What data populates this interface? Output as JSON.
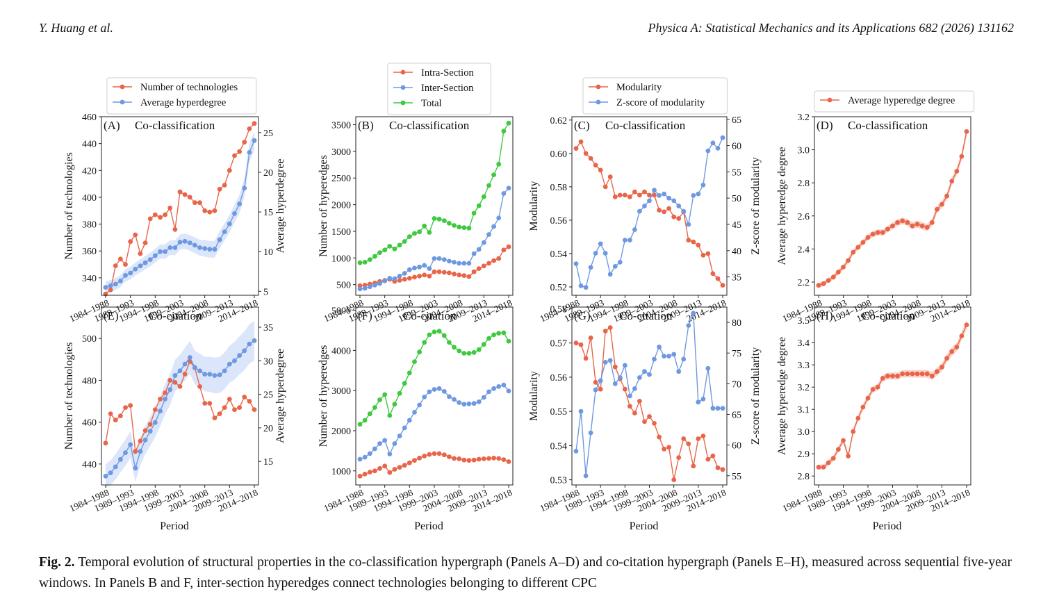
{
  "header": {
    "authors": "Y. Huang et al.",
    "journal": "Physica A: Statistical Mechanics and its Applications 682 (2026) 131162"
  },
  "caption": {
    "label": "Fig. 2.",
    "text": "Temporal evolution of structural properties in the co-classification hypergraph (Panels A–D) and co-citation hypergraph (Panels E–H), measured across sequential five-year windows. In Panels B and F, inter-section hyperedges connect technologies belonging to different CPC"
  },
  "colors": {
    "red": "#e8654a",
    "blue": "#6e98e0",
    "green": "#3ec93e",
    "blue_band": "#dbe6fa",
    "red_band": "#f8d5cc"
  },
  "x_axis": {
    "label": "Period",
    "ticks": [
      "1984–1988",
      "1989–1993",
      "1994–1998",
      "1999–2003",
      "2004–2008",
      "2009–2013",
      "2014–2018"
    ]
  },
  "chart_data": [
    {
      "id": "A",
      "panel": "(A)",
      "title": "Co-classification",
      "type": "line",
      "ylabel": "Number of technologies",
      "ylim": [
        327,
        460
      ],
      "yticks": [
        340,
        360,
        380,
        400,
        420,
        440,
        460
      ],
      "y2label": "Average hyperdegree",
      "y2lim": [
        4.5,
        27
      ],
      "y2ticks": [
        5,
        10,
        15,
        20,
        25
      ],
      "legend": [
        "Number of technologies",
        "Average hyperdegree"
      ],
      "series": [
        {
          "name": "Number of technologies",
          "axis": "left",
          "color": "red",
          "values": [
            328,
            331,
            349,
            354,
            350,
            367,
            372,
            358,
            366,
            384,
            387,
            385,
            387,
            392,
            376,
            404,
            402,
            400,
            396,
            396,
            390,
            389,
            390,
            406,
            409,
            420,
            431,
            434,
            441,
            451,
            455
          ]
        },
        {
          "name": "Average hyperdegree",
          "axis": "right",
          "color": "blue",
          "band": 1.2,
          "values": [
            5.5,
            5.7,
            5.9,
            6.3,
            7.0,
            7.3,
            7.8,
            8.2,
            8.6,
            9.0,
            9.5,
            10.0,
            10.0,
            10.5,
            10.5,
            11.2,
            11.3,
            11.1,
            10.8,
            10.5,
            10.4,
            10.3,
            10.3,
            11.5,
            12.5,
            13.5,
            14.8,
            16.0,
            18.0,
            22.5,
            24.0
          ]
        }
      ]
    },
    {
      "id": "B",
      "panel": "(B)",
      "title": "Co-classification",
      "type": "line",
      "ylabel": "Number of hyperedges",
      "ylim": [
        300,
        3650
      ],
      "yticks": [
        500,
        1000,
        1500,
        2000,
        2500,
        3000,
        3500
      ],
      "legend": [
        "Intra-Section",
        "Inter-Section",
        "Total"
      ],
      "series": [
        {
          "name": "Intra-Section",
          "axis": "left",
          "color": "red",
          "values": [
            480,
            490,
            510,
            530,
            560,
            580,
            600,
            560,
            580,
            600,
            620,
            640,
            660,
            680,
            660,
            740,
            740,
            730,
            720,
            700,
            680,
            670,
            650,
            740,
            800,
            850,
            900,
            950,
            990,
            1150,
            1210
          ]
        },
        {
          "name": "Inter-Section",
          "axis": "left",
          "color": "blue",
          "values": [
            420,
            430,
            460,
            490,
            520,
            570,
            620,
            610,
            660,
            710,
            780,
            810,
            830,
            860,
            800,
            990,
            990,
            970,
            940,
            920,
            900,
            900,
            900,
            1080,
            1160,
            1290,
            1440,
            1590,
            1750,
            2210,
            2310
          ]
        },
        {
          "name": "Total",
          "axis": "left",
          "color": "green",
          "values": [
            910,
            920,
            970,
            1030,
            1100,
            1150,
            1220,
            1170,
            1240,
            1310,
            1400,
            1460,
            1490,
            1600,
            1480,
            1740,
            1730,
            1700,
            1650,
            1610,
            1580,
            1570,
            1560,
            1840,
            1980,
            2150,
            2360,
            2560,
            2760,
            3380,
            3530
          ]
        }
      ]
    },
    {
      "id": "C",
      "panel": "(C)",
      "title": "Co-classification",
      "type": "line",
      "ylabel": "Modularity",
      "ylim": [
        0.515,
        0.622
      ],
      "yticks": [
        0.52,
        0.54,
        0.56,
        0.58,
        0.6,
        0.62
      ],
      "y2label": "Z-score of modularity",
      "y2lim": [
        31.5,
        65.5
      ],
      "y2ticks": [
        35,
        40,
        45,
        50,
        55,
        60,
        65
      ],
      "legend": [
        "Modularity",
        "Z-score of modularity"
      ],
      "series": [
        {
          "name": "Modularity",
          "axis": "left",
          "color": "red",
          "values": [
            0.603,
            0.607,
            0.6,
            0.597,
            0.593,
            0.59,
            0.58,
            0.586,
            0.574,
            0.575,
            0.575,
            0.574,
            0.577,
            0.575,
            0.577,
            0.575,
            0.575,
            0.566,
            0.565,
            0.567,
            0.562,
            0.561,
            0.565,
            0.548,
            0.547,
            0.545,
            0.539,
            0.54,
            0.528,
            0.525,
            0.521
          ]
        },
        {
          "name": "Z-score of modularity",
          "axis": "right",
          "color": "blue",
          "values": [
            37.5,
            33.3,
            33.0,
            36.8,
            39.5,
            41.3,
            39.5,
            35.5,
            37.0,
            37.8,
            42.0,
            42.0,
            44.0,
            47.5,
            48.5,
            49.5,
            51.5,
            50.5,
            50.8,
            50.0,
            49.5,
            48.5,
            47.5,
            45.0,
            50.5,
            50.8,
            52.5,
            59.0,
            60.5,
            59.5,
            61.5
          ]
        }
      ]
    },
    {
      "id": "D",
      "panel": "(D)",
      "title": "Co-classification",
      "type": "line",
      "ylabel": "Average hyperedge degree",
      "ylim": [
        2.12,
        3.2
      ],
      "yticks": [
        2.2,
        2.4,
        2.6,
        2.8,
        3.0,
        3.2
      ],
      "legend": [
        "Average hyperedge degree"
      ],
      "series": [
        {
          "name": "Average hyperedge degree",
          "axis": "left",
          "color": "red",
          "band": 0.025,
          "values": [
            2.18,
            2.19,
            2.21,
            2.23,
            2.26,
            2.29,
            2.33,
            2.38,
            2.41,
            2.44,
            2.47,
            2.49,
            2.5,
            2.5,
            2.52,
            2.54,
            2.56,
            2.57,
            2.56,
            2.54,
            2.55,
            2.54,
            2.53,
            2.56,
            2.64,
            2.67,
            2.72,
            2.81,
            2.87,
            2.96,
            3.11
          ]
        }
      ]
    },
    {
      "id": "E",
      "panel": "(E)",
      "title": "Co-citation",
      "type": "line",
      "ylabel": "Number of technologies",
      "ylim": [
        430,
        515
      ],
      "yticks": [
        440,
        460,
        480,
        500
      ],
      "y2label": "Average hyperdegree",
      "y2lim": [
        11.5,
        38
      ],
      "y2ticks": [
        15,
        20,
        25,
        30,
        35
      ],
      "series": [
        {
          "name": "Number of technologies",
          "axis": "left",
          "color": "red",
          "values": [
            450,
            464,
            461,
            463,
            467,
            468,
            446,
            451,
            456,
            459,
            466,
            471,
            474,
            480,
            479,
            477,
            483,
            489,
            486,
            477,
            469,
            469,
            462,
            464,
            467,
            471,
            466,
            467,
            472,
            470,
            466
          ]
        },
        {
          "name": "Average hyperdegree",
          "axis": "right",
          "color": "blue",
          "band": 3.0,
          "values": [
            12.8,
            13.3,
            14.2,
            15.3,
            16.3,
            17.5,
            14.0,
            16.5,
            18.2,
            19.5,
            20.8,
            22.5,
            24.3,
            25.7,
            27.8,
            28.5,
            29.5,
            30.5,
            29.0,
            28.5,
            28.0,
            28.0,
            27.8,
            27.9,
            28.5,
            29.5,
            30.0,
            30.8,
            31.5,
            32.5,
            33.0
          ]
        }
      ]
    },
    {
      "id": "F",
      "panel": "(F)",
      "title": "Co-citation",
      "type": "line",
      "ylabel": "Number of hyperedges",
      "ylim": [
        650,
        5080
      ],
      "yticks": [
        1000,
        2000,
        3000,
        4000,
        5000
      ],
      "series": [
        {
          "name": "Intra-Section",
          "axis": "left",
          "color": "red",
          "values": [
            870,
            920,
            970,
            1000,
            1060,
            1120,
            960,
            1040,
            1090,
            1140,
            1200,
            1260,
            1320,
            1370,
            1410,
            1430,
            1430,
            1400,
            1350,
            1310,
            1300,
            1270,
            1260,
            1270,
            1290,
            1300,
            1310,
            1320,
            1310,
            1280,
            1230
          ]
        },
        {
          "name": "Inter-Section",
          "axis": "left",
          "color": "blue",
          "values": [
            1290,
            1340,
            1430,
            1550,
            1680,
            1760,
            1420,
            1680,
            1870,
            2070,
            2260,
            2460,
            2640,
            2840,
            2970,
            3030,
            3050,
            2980,
            2850,
            2780,
            2700,
            2660,
            2670,
            2680,
            2720,
            2830,
            2970,
            3050,
            3100,
            3140,
            2990
          ]
        },
        {
          "name": "Total",
          "axis": "left",
          "color": "green",
          "values": [
            2160,
            2260,
            2420,
            2580,
            2770,
            2900,
            2380,
            2660,
            2930,
            3180,
            3440,
            3720,
            3960,
            4200,
            4390,
            4460,
            4480,
            4370,
            4200,
            4080,
            3990,
            3930,
            3930,
            3950,
            4020,
            4150,
            4300,
            4390,
            4430,
            4440,
            4230
          ]
        }
      ]
    },
    {
      "id": "G",
      "panel": "(G)",
      "title": "Co-citation",
      "type": "line",
      "ylabel": "Modularity",
      "ylim": [
        0.5285,
        0.5805
      ],
      "yticks": [
        0.53,
        0.54,
        0.55,
        0.56,
        0.57,
        0.58
      ],
      "y2label": "Z-score of modularity",
      "y2lim": [
        53.5,
        82.5
      ],
      "y2ticks": [
        55,
        60,
        65,
        70,
        75,
        80
      ],
      "series": [
        {
          "name": "Modularity",
          "axis": "left",
          "color": "red",
          "values": [
            0.57,
            0.5695,
            0.5655,
            0.5715,
            0.5585,
            0.5565,
            0.5735,
            0.5745,
            0.563,
            0.5595,
            0.5565,
            0.5515,
            0.5495,
            0.553,
            0.547,
            0.5485,
            0.5465,
            0.5425,
            0.539,
            0.5395,
            0.53,
            0.5365,
            0.542,
            0.5405,
            0.534,
            0.542,
            0.5428,
            0.536,
            0.537,
            0.5335,
            0.533
          ]
        },
        {
          "name": "Z-score of modularity",
          "axis": "right",
          "color": "blue",
          "values": [
            59.0,
            65.5,
            55.0,
            62.0,
            69.0,
            70.5,
            73.5,
            73.8,
            70.0,
            71.0,
            73.0,
            68.0,
            69.2,
            71.0,
            72.0,
            71.5,
            74.0,
            76.0,
            74.5,
            74.5,
            74.8,
            72.0,
            74.0,
            79.5,
            81.5,
            67.0,
            67.5,
            72.5,
            66.0,
            66.0,
            66.0
          ]
        }
      ]
    },
    {
      "id": "H",
      "panel": "(H)",
      "title": "Co-citation",
      "type": "line",
      "ylabel": "Average hyperedge degree",
      "ylim": [
        2.76,
        3.56
      ],
      "yticks": [
        2.8,
        2.9,
        3.0,
        3.1,
        3.2,
        3.3,
        3.4,
        3.5
      ],
      "series": [
        {
          "name": "Average hyperedge degree",
          "axis": "left",
          "color": "red",
          "band": 0.02,
          "values": [
            2.84,
            2.84,
            2.86,
            2.88,
            2.92,
            2.96,
            2.89,
            3.0,
            3.06,
            3.11,
            3.15,
            3.19,
            3.2,
            3.24,
            3.25,
            3.25,
            3.25,
            3.26,
            3.26,
            3.26,
            3.26,
            3.26,
            3.26,
            3.25,
            3.27,
            3.29,
            3.33,
            3.36,
            3.38,
            3.43,
            3.48
          ]
        }
      ]
    }
  ]
}
